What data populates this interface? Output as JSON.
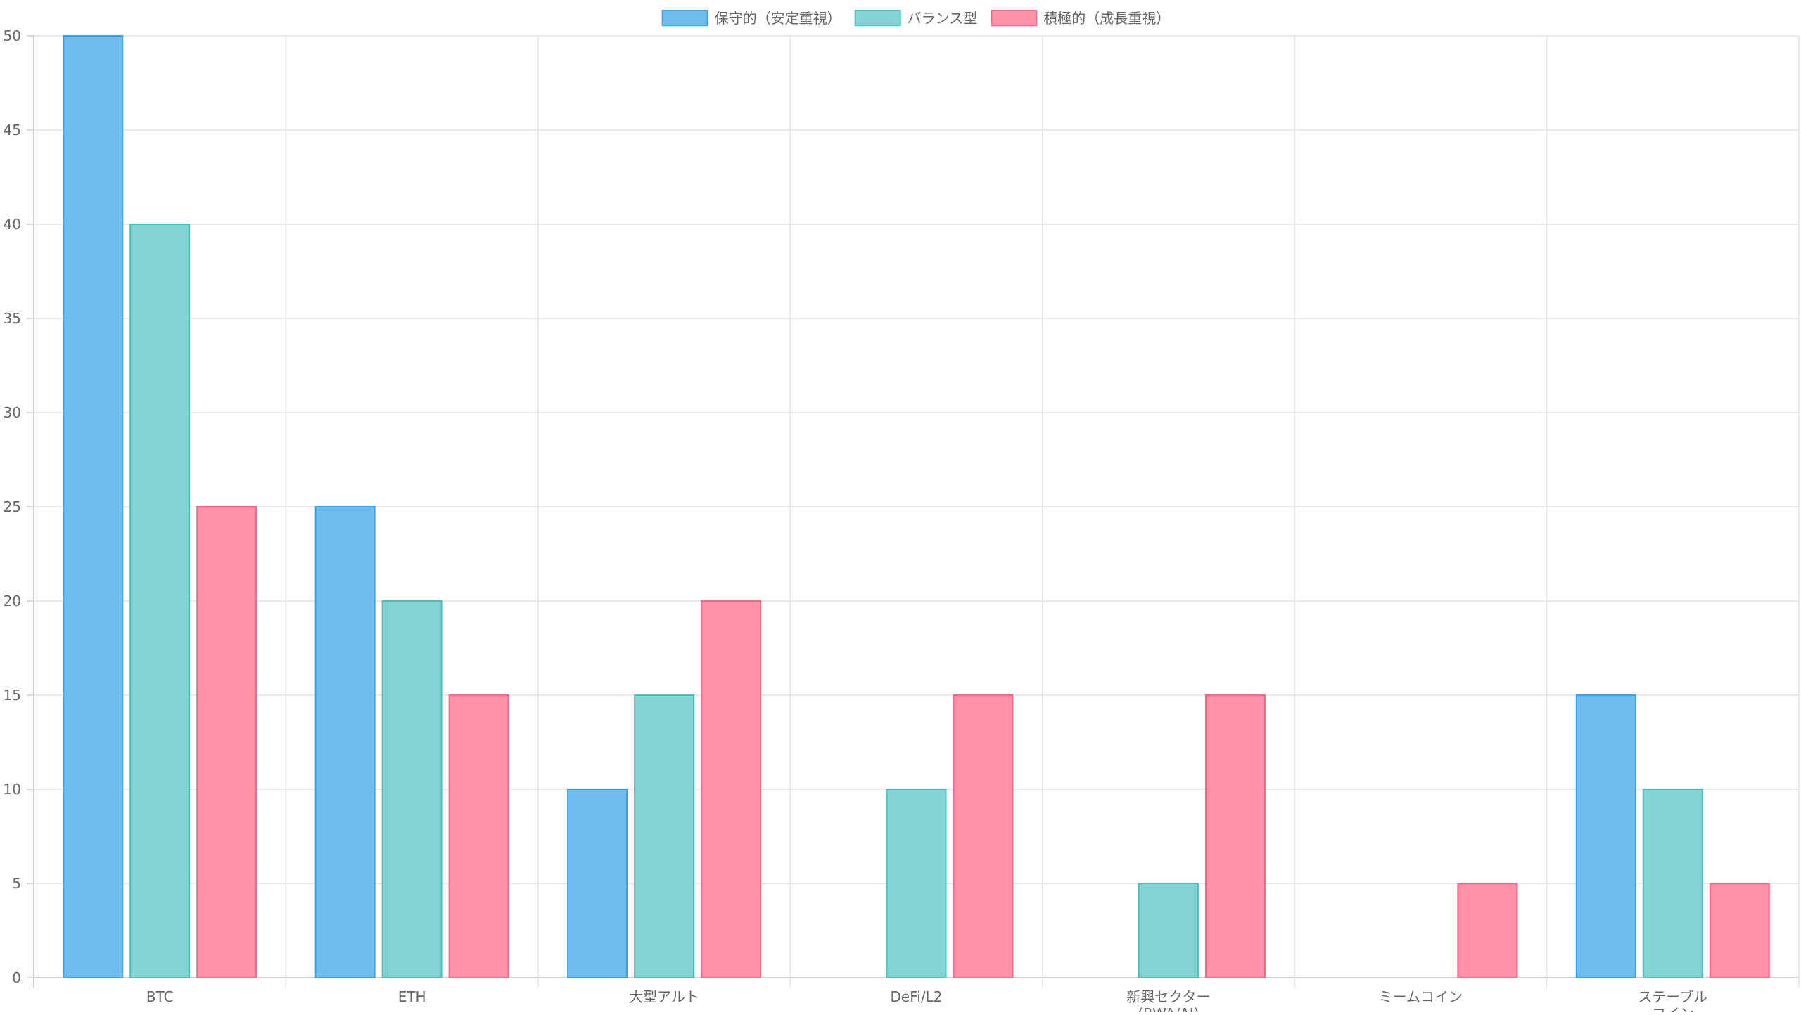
{
  "chart_data": {
    "type": "bar",
    "categories": [
      "BTC",
      "ETH",
      "大型アルト",
      "DeFi/L2",
      "新興セクター\n(RWA/AI)",
      "ミームコイン",
      "ステーブル\nコイン"
    ],
    "series": [
      {
        "name": "保守的（安定重視）",
        "values": [
          50,
          25,
          10,
          0,
          0,
          0,
          15
        ],
        "fill": "#71BCEE",
        "stroke": "#36A2EB"
      },
      {
        "name": "バランス型",
        "values": [
          40,
          20,
          15,
          10,
          5,
          0,
          10
        ],
        "fill": "#83D3D2",
        "stroke": "#4BC0C0"
      },
      {
        "name": "積極的（成長重視）",
        "values": [
          25,
          15,
          20,
          15,
          15,
          5,
          5
        ],
        "fill": "#FF91A9",
        "stroke": "#FF6384"
      }
    ],
    "ylim": [
      0,
      50
    ],
    "yticks": [
      0,
      5,
      10,
      15,
      20,
      25,
      30,
      35,
      40,
      45,
      50
    ],
    "legend_position": "top-center",
    "grid": true
  }
}
